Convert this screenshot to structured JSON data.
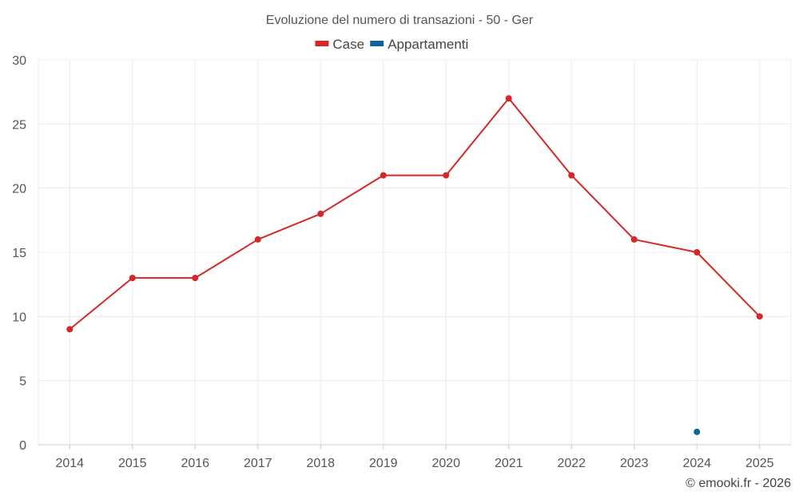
{
  "chart_data": {
    "type": "line",
    "title": "Evoluzione del numero di transazioni - 50 - Ger",
    "categories": [
      "2014",
      "2015",
      "2016",
      "2017",
      "2018",
      "2019",
      "2020",
      "2021",
      "2022",
      "2023",
      "2024",
      "2025"
    ],
    "y_ticks": [
      "0",
      "5",
      "10",
      "15",
      "20",
      "25",
      "30"
    ],
    "ylim": [
      0,
      30
    ],
    "grid": true,
    "legend_position": "top-center",
    "series": [
      {
        "name": "Case",
        "color": "#d62728",
        "values": [
          9,
          13,
          13,
          16,
          18,
          21,
          21,
          27,
          21,
          16,
          15,
          10
        ]
      },
      {
        "name": "Appartamenti",
        "color": "#0d62a0",
        "values": [
          null,
          null,
          null,
          null,
          null,
          null,
          null,
          null,
          null,
          null,
          1,
          null
        ]
      }
    ]
  },
  "credit": "© emooki.fr - 2026"
}
